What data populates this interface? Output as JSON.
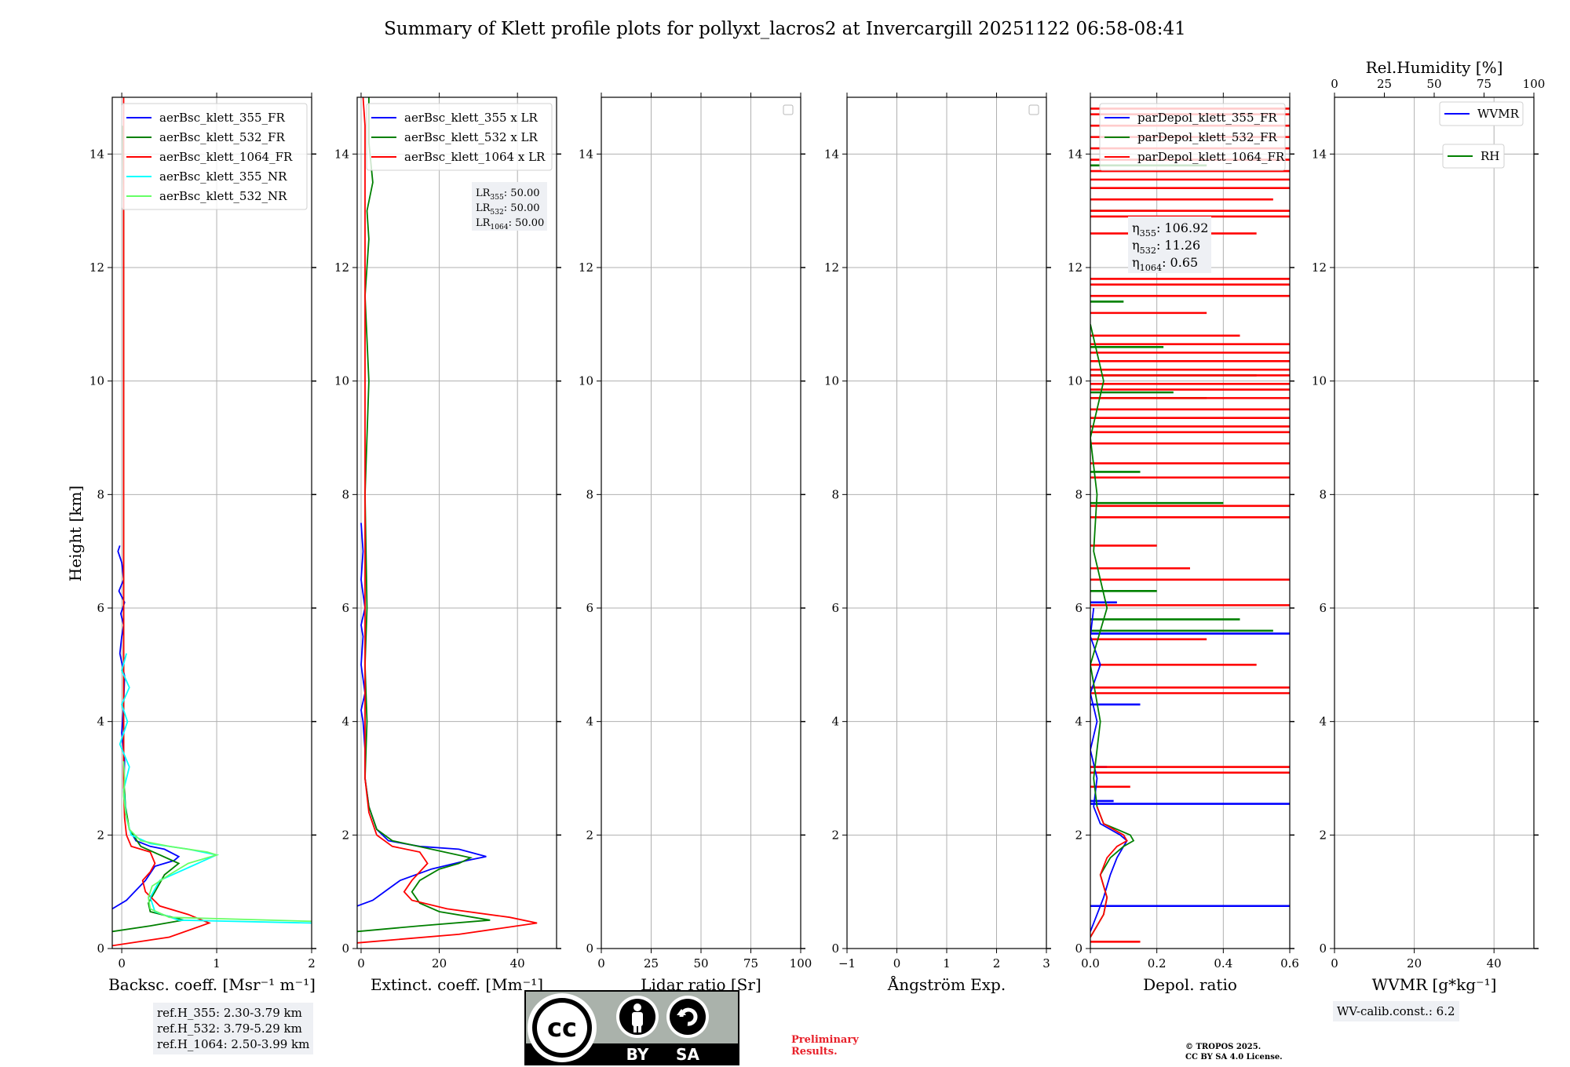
{
  "title": "Summary of Klett profile plots for pollyxt_lacros2 at Invercargill 20251122 06:58-08:41",
  "ylabel": "Height [km]",
  "chart_data": [
    {
      "id": "bsc",
      "type": "line",
      "xlabel": "Backsc. coeff. [Msr⁻¹ m⁻¹]",
      "xlim": [
        -0.1,
        2.0
      ],
      "ylim": [
        0,
        15
      ],
      "xticks": [
        0,
        1,
        2
      ],
      "yticks": [
        0,
        2,
        4,
        6,
        8,
        10,
        12,
        14
      ],
      "legend": "top-right",
      "series": [
        {
          "name": "aerBsc_klett_355_FR",
          "color": "#0000ff",
          "x": [
            -0.1,
            0.05,
            0.25,
            0.35,
            0.55,
            0.6,
            0.45,
            0.3,
            0.15,
            0.08,
            0.04,
            0.02,
            0.03,
            0.0,
            0.02,
            0.03,
            -0.02,
            0.0,
            0.02,
            -0.01,
            0.03,
            -0.03,
            0.02,
            0.0,
            -0.04,
            -0.02
          ],
          "y": [
            0.7,
            0.85,
            1.2,
            1.45,
            1.55,
            1.62,
            1.75,
            1.8,
            1.9,
            2.1,
            2.4,
            2.8,
            3.3,
            3.8,
            4.3,
            4.8,
            5.2,
            5.5,
            5.7,
            5.9,
            6.1,
            6.3,
            6.5,
            6.8,
            7.0,
            7.1
          ]
        },
        {
          "name": "aerBsc_klett_532_FR",
          "color": "#008000",
          "x": [
            -0.1,
            0.3,
            0.65,
            0.3,
            0.28,
            0.35,
            0.45,
            0.6,
            0.2,
            0.08,
            0.04,
            0.02,
            0.02,
            0.02,
            0.02,
            0.02,
            0.02,
            0.02,
            0.02,
            0.02,
            0.02,
            0.02,
            0.01
          ],
          "y": [
            0.3,
            0.4,
            0.5,
            0.65,
            0.8,
            1.0,
            1.3,
            1.5,
            1.8,
            2.1,
            2.5,
            3.0,
            4.0,
            5.0,
            6.0,
            7.0,
            8.0,
            9.0,
            10.0,
            11.0,
            12.0,
            13.0,
            14.5
          ]
        },
        {
          "name": "aerBsc_klett_1064_FR",
          "color": "#ff0000",
          "x": [
            -0.1,
            0.5,
            0.92,
            0.7,
            0.4,
            0.25,
            0.22,
            0.3,
            0.35,
            0.3,
            0.1,
            0.05,
            0.03,
            0.02,
            0.02,
            0.02,
            0.02,
            0.02,
            0.02,
            0.02,
            0.02,
            0.02,
            0.02,
            0.02,
            0.02
          ],
          "y": [
            0.05,
            0.2,
            0.45,
            0.6,
            0.75,
            1.0,
            1.2,
            1.35,
            1.5,
            1.7,
            1.8,
            2.0,
            2.3,
            2.8,
            4.0,
            5.0,
            6.0,
            7.0,
            8.0,
            9.0,
            10.0,
            11.0,
            12.0,
            13.0,
            15.0
          ]
        },
        {
          "name": "aerBsc_klett_355_NR",
          "color": "#00ffff",
          "x": [
            2.0,
            0.6,
            0.35,
            0.3,
            0.4,
            0.8,
            1.0,
            0.7,
            0.3,
            0.1,
            0.05,
            0.02,
            0.08,
            -0.02,
            0.06,
            0.0,
            0.08,
            0.0,
            0.05
          ],
          "y": [
            0.45,
            0.5,
            0.65,
            0.9,
            1.2,
            1.5,
            1.65,
            1.75,
            1.85,
            2.0,
            2.3,
            2.8,
            3.2,
            3.6,
            4.0,
            4.3,
            4.6,
            4.9,
            5.2
          ]
        },
        {
          "name": "aerBsc_klett_532_NR",
          "color": "#66ff66",
          "x": [
            2.0,
            0.5,
            0.3,
            0.28,
            0.32,
            0.5,
            0.7,
            1.0,
            0.9,
            0.5,
            0.2,
            0.08,
            0.04,
            0.02,
            0.03,
            0.02
          ],
          "y": [
            0.48,
            0.55,
            0.7,
            0.9,
            1.1,
            1.3,
            1.5,
            1.65,
            1.7,
            1.8,
            1.9,
            2.1,
            2.4,
            2.7,
            3.0,
            3.3
          ]
        }
      ],
      "notes": [
        "ref.H_355: 2.30-3.79 km",
        "ref.H_532: 3.79-5.29 km",
        "ref.H_1064: 2.50-3.99 km"
      ]
    },
    {
      "id": "ext",
      "type": "line",
      "xlabel": "Extinct. coeff. [Mm⁻¹]",
      "xlim": [
        -1,
        50
      ],
      "ylim": [
        0,
        15
      ],
      "xticks": [
        0,
        20,
        40
      ],
      "yticks": [
        0,
        2,
        4,
        6,
        8,
        10,
        12,
        14
      ],
      "legend": "top-right",
      "series": [
        {
          "name": "aerBsc_klett_355 x LR",
          "color": "#0000ff",
          "x": [
            -1,
            3,
            7,
            10,
            18,
            27,
            32,
            25,
            15,
            7,
            4,
            2,
            1,
            1,
            0.5,
            0,
            1,
            0,
            0.5,
            0,
            1,
            0,
            0.5,
            0
          ],
          "y": [
            0.75,
            0.85,
            1.05,
            1.2,
            1.4,
            1.55,
            1.62,
            1.75,
            1.8,
            1.9,
            2.1,
            2.5,
            3.0,
            3.5,
            4.0,
            4.2,
            4.5,
            5.0,
            5.5,
            5.7,
            6.0,
            6.5,
            7.0,
            7.5
          ]
        },
        {
          "name": "aerBsc_klett_532 x LR",
          "color": "#008000",
          "x": [
            -1,
            15,
            33,
            20,
            15,
            13,
            15,
            20,
            25,
            28,
            18,
            8,
            4,
            2,
            1,
            1.5,
            1,
            1.5,
            1,
            2,
            1,
            2,
            1.5,
            3,
            2,
            2
          ],
          "y": [
            0.3,
            0.4,
            0.5,
            0.65,
            0.8,
            1.0,
            1.2,
            1.4,
            1.5,
            1.6,
            1.75,
            1.9,
            2.1,
            2.5,
            3.0,
            4.0,
            5.0,
            6.0,
            8.0,
            10.0,
            11.5,
            12.5,
            13.0,
            13.5,
            14.2,
            15.0
          ]
        },
        {
          "name": "aerBsc_klett_1064 x LR",
          "color": "#ff0000",
          "x": [
            -1,
            25,
            45,
            38,
            22,
            13,
            11,
            13,
            17,
            15,
            8,
            4,
            2,
            1,
            1,
            1,
            1,
            1,
            1,
            1,
            1,
            0.5
          ],
          "y": [
            0.1,
            0.25,
            0.45,
            0.55,
            0.7,
            0.85,
            1.0,
            1.2,
            1.5,
            1.7,
            1.8,
            2.0,
            2.4,
            3.0,
            4.0,
            6.0,
            8.0,
            10.0,
            12.0,
            13.5,
            14.5,
            15.0
          ]
        }
      ],
      "notes": [
        "LR355: 50.00",
        "LR532: 50.00",
        "LR1064: 50.00"
      ]
    },
    {
      "id": "lr",
      "type": "line",
      "xlabel": "Lidar ratio [Sr]",
      "xlim": [
        0,
        100
      ],
      "ylim": [
        0,
        15
      ],
      "xticks": [
        0,
        25,
        50,
        75,
        100
      ],
      "yticks": [
        0,
        2,
        4,
        6,
        8,
        10,
        12,
        14
      ],
      "legend": "top-right",
      "series": []
    },
    {
      "id": "ang",
      "type": "line",
      "xlabel": "Ångström Exp.",
      "xlim": [
        -1,
        3
      ],
      "ylim": [
        0,
        15
      ],
      "xticks": [
        -1,
        0,
        1,
        2,
        3
      ],
      "yticks": [
        0,
        2,
        4,
        6,
        8,
        10,
        12,
        14
      ],
      "legend": "top-right",
      "series": []
    },
    {
      "id": "depol",
      "type": "line",
      "xlabel": "Depol. ratio",
      "xlim": [
        0.0,
        0.6
      ],
      "ylim": [
        0,
        15
      ],
      "xticks": [
        0.0,
        0.2,
        0.4,
        0.6
      ],
      "yticks": [
        0,
        2,
        4,
        6,
        8,
        10,
        12,
        14
      ],
      "legend": "top-right",
      "series": [
        {
          "name": "parDepol_klett_355_FR",
          "color": "#0000ff",
          "x": [
            0.0,
            0.02,
            0.04,
            0.06,
            0.08,
            0.1,
            0.11,
            0.09,
            0.06,
            0.03,
            0.01,
            0.02,
            0.0,
            0.02,
            0.0,
            0.03,
            0.0,
            0.01
          ],
          "y": [
            0.3,
            0.6,
            0.9,
            1.3,
            1.6,
            1.8,
            1.9,
            2.0,
            2.1,
            2.2,
            2.5,
            3.0,
            3.5,
            4.0,
            4.5,
            5.0,
            5.5,
            6.0
          ]
        },
        {
          "name": "parDepol_klett_532_FR",
          "color": "#008000",
          "x": [
            0.0,
            0.02,
            0.04,
            0.05,
            0.04,
            0.03,
            0.06,
            0.1,
            0.13,
            0.12,
            0.08,
            0.04,
            0.02,
            0.01,
            0.03,
            0.0,
            0.05,
            0.01,
            0.02,
            0.0,
            0.04,
            0.0
          ],
          "y": [
            0.2,
            0.4,
            0.6,
            0.9,
            1.1,
            1.3,
            1.6,
            1.8,
            1.9,
            2.0,
            2.1,
            2.2,
            2.5,
            3.0,
            4.0,
            5.0,
            6.0,
            7.0,
            8.0,
            9.0,
            10.0,
            11.0
          ]
        },
        {
          "name": "parDepol_klett_1064_FR",
          "color": "#ff0000",
          "x": [
            0.0,
            0.02,
            0.04,
            0.05,
            0.04,
            0.03,
            0.05,
            0.08,
            0.11,
            0.1,
            0.07,
            0.04,
            0.02
          ],
          "y": [
            0.2,
            0.4,
            0.6,
            0.9,
            1.1,
            1.3,
            1.6,
            1.8,
            1.9,
            2.0,
            2.1,
            2.2,
            2.5
          ]
        }
      ],
      "spikes": [
        {
          "color": "#0000ff",
          "items": [
            [
              0.75,
              0.6
            ],
            [
              2.55,
              0.6
            ],
            [
              5.55,
              0.6
            ],
            [
              4.3,
              0.15
            ],
            [
              3.2,
              0.05
            ],
            [
              6.1,
              0.08
            ],
            [
              2.6,
              0.07
            ]
          ]
        },
        {
          "color": "#008000",
          "items": [
            [
              5.6,
              0.55
            ],
            [
              5.8,
              0.45
            ],
            [
              7.85,
              0.4
            ],
            [
              8.4,
              0.15
            ],
            [
              9.7,
              0.35
            ],
            [
              9.8,
              0.25
            ],
            [
              10.1,
              0.5
            ],
            [
              10.6,
              0.22
            ],
            [
              11.4,
              0.1
            ],
            [
              13.0,
              0.2
            ],
            [
              13.8,
              0.35
            ],
            [
              6.3,
              0.2
            ]
          ]
        },
        {
          "color": "#ff0000",
          "items": [
            [
              0.12,
              0.15
            ],
            [
              2.85,
              0.12
            ],
            [
              3.1,
              0.6
            ],
            [
              3.2,
              0.6
            ],
            [
              4.5,
              0.6
            ],
            [
              4.6,
              0.6
            ],
            [
              5.0,
              0.5
            ],
            [
              5.45,
              0.35
            ],
            [
              6.05,
              0.6
            ],
            [
              6.5,
              0.6
            ],
            [
              6.7,
              0.3
            ],
            [
              7.1,
              0.2
            ],
            [
              7.6,
              0.6
            ],
            [
              7.8,
              0.6
            ],
            [
              8.3,
              0.6
            ],
            [
              8.55,
              0.6
            ],
            [
              8.9,
              0.6
            ],
            [
              9.1,
              0.6
            ],
            [
              9.2,
              0.6
            ],
            [
              9.35,
              0.6
            ],
            [
              9.5,
              0.6
            ],
            [
              9.7,
              0.6
            ],
            [
              9.85,
              0.6
            ],
            [
              9.95,
              0.6
            ],
            [
              10.1,
              0.6
            ],
            [
              10.2,
              0.6
            ],
            [
              10.35,
              0.6
            ],
            [
              10.5,
              0.6
            ],
            [
              10.65,
              0.6
            ],
            [
              10.8,
              0.45
            ],
            [
              11.2,
              0.35
            ],
            [
              11.5,
              0.6
            ],
            [
              11.7,
              0.6
            ],
            [
              11.8,
              0.6
            ],
            [
              12.6,
              0.5
            ],
            [
              12.9,
              0.6
            ],
            [
              13.0,
              0.6
            ],
            [
              13.2,
              0.55
            ],
            [
              13.4,
              0.6
            ],
            [
              13.55,
              0.6
            ],
            [
              13.7,
              0.6
            ],
            [
              13.9,
              0.6
            ],
            [
              14.1,
              0.6
            ],
            [
              14.3,
              0.6
            ],
            [
              14.5,
              0.6
            ],
            [
              14.7,
              0.6
            ],
            [
              14.8,
              0.6
            ]
          ]
        }
      ],
      "notes": [
        "η355: 106.92",
        "η532: 11.26",
        "η1064: 0.65"
      ]
    },
    {
      "id": "wv",
      "type": "line",
      "xlabel": "WVMR [g*kg⁻¹]",
      "toplabel": "Rel.Humidity [%]",
      "xlim": [
        0,
        50
      ],
      "ylim": [
        0,
        15
      ],
      "xticks": [
        0,
        20,
        40
      ],
      "topticks": [
        0,
        25,
        50,
        75,
        100
      ],
      "yticks": [
        0,
        2,
        4,
        6,
        8,
        10,
        12,
        14
      ],
      "legend": "top-right",
      "series": [
        {
          "name": "WVMR",
          "color": "#0000ff",
          "x": [],
          "y": []
        },
        {
          "name": "RH",
          "color": "#008000",
          "x": [],
          "y": []
        }
      ],
      "notes": [
        "WV-calib.const.: 6.2"
      ]
    }
  ],
  "footer": {
    "preliminary": [
      "Preliminary",
      "Results."
    ],
    "license": [
      "© TROPOS 2025.",
      "CC BY SA 4.0 License."
    ],
    "cc_logo": {
      "text": "cc",
      "by": "BY",
      "sa": "SA"
    }
  }
}
